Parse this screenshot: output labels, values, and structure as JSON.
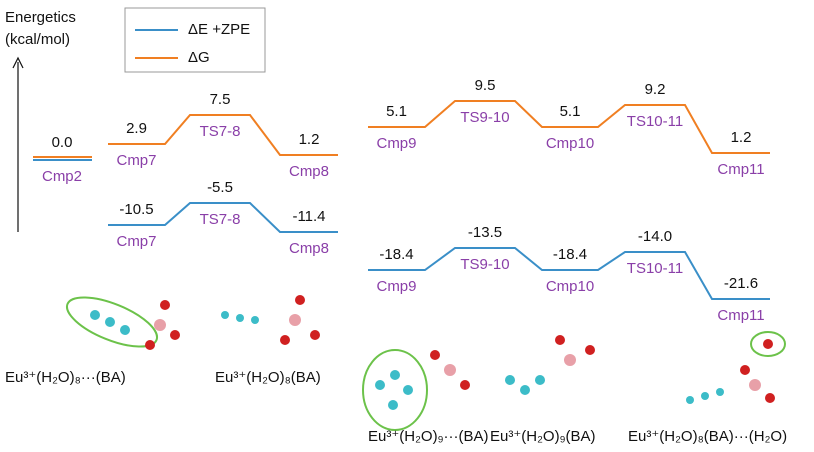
{
  "axis": {
    "title": "Energetics",
    "unit": "(kcal/mol)"
  },
  "legend": [
    {
      "label": "ΔE +ZPE",
      "color": "#3a8fc8"
    },
    {
      "label": "ΔG",
      "color": "#f07f22"
    }
  ],
  "start": {
    "label": "Cmp2",
    "value": "0.0"
  },
  "pathways": [
    {
      "dG": [
        {
          "label": "Cmp7",
          "value": "2.9"
        },
        {
          "label": "TS7-8",
          "value": "7.5"
        },
        {
          "label": "Cmp8",
          "value": "1.2"
        }
      ],
      "dE": [
        {
          "label": "Cmp7",
          "value": "-10.5"
        },
        {
          "label": "TS7-8",
          "value": "-5.5"
        },
        {
          "label": "Cmp8",
          "value": "-11.4"
        }
      ]
    },
    {
      "dG": [
        {
          "label": "Cmp9",
          "value": "5.1"
        },
        {
          "label": "TS9-10",
          "value": "9.5"
        },
        {
          "label": "Cmp10",
          "value": "5.1"
        },
        {
          "label": "TS10-11",
          "value": "9.2"
        },
        {
          "label": "Cmp11",
          "value": "1.2"
        }
      ],
      "dE": [
        {
          "label": "Cmp9",
          "value": "-18.4"
        },
        {
          "label": "TS9-10",
          "value": "-13.5"
        },
        {
          "label": "Cmp10",
          "value": "-18.4"
        },
        {
          "label": "TS10-11",
          "value": "-14.0"
        },
        {
          "label": "Cmp11",
          "value": "-21.6"
        }
      ]
    }
  ],
  "structures": [
    "Eu³⁺(H₂O)₈···(BA)",
    "Eu³⁺(H₂O)₈(BA)",
    "Eu³⁺(H₂O)₉···(BA)",
    "Eu³⁺(H₂O)₉(BA)",
    "Eu³⁺(H₂O)₈(BA)···(H₂O)"
  ]
}
